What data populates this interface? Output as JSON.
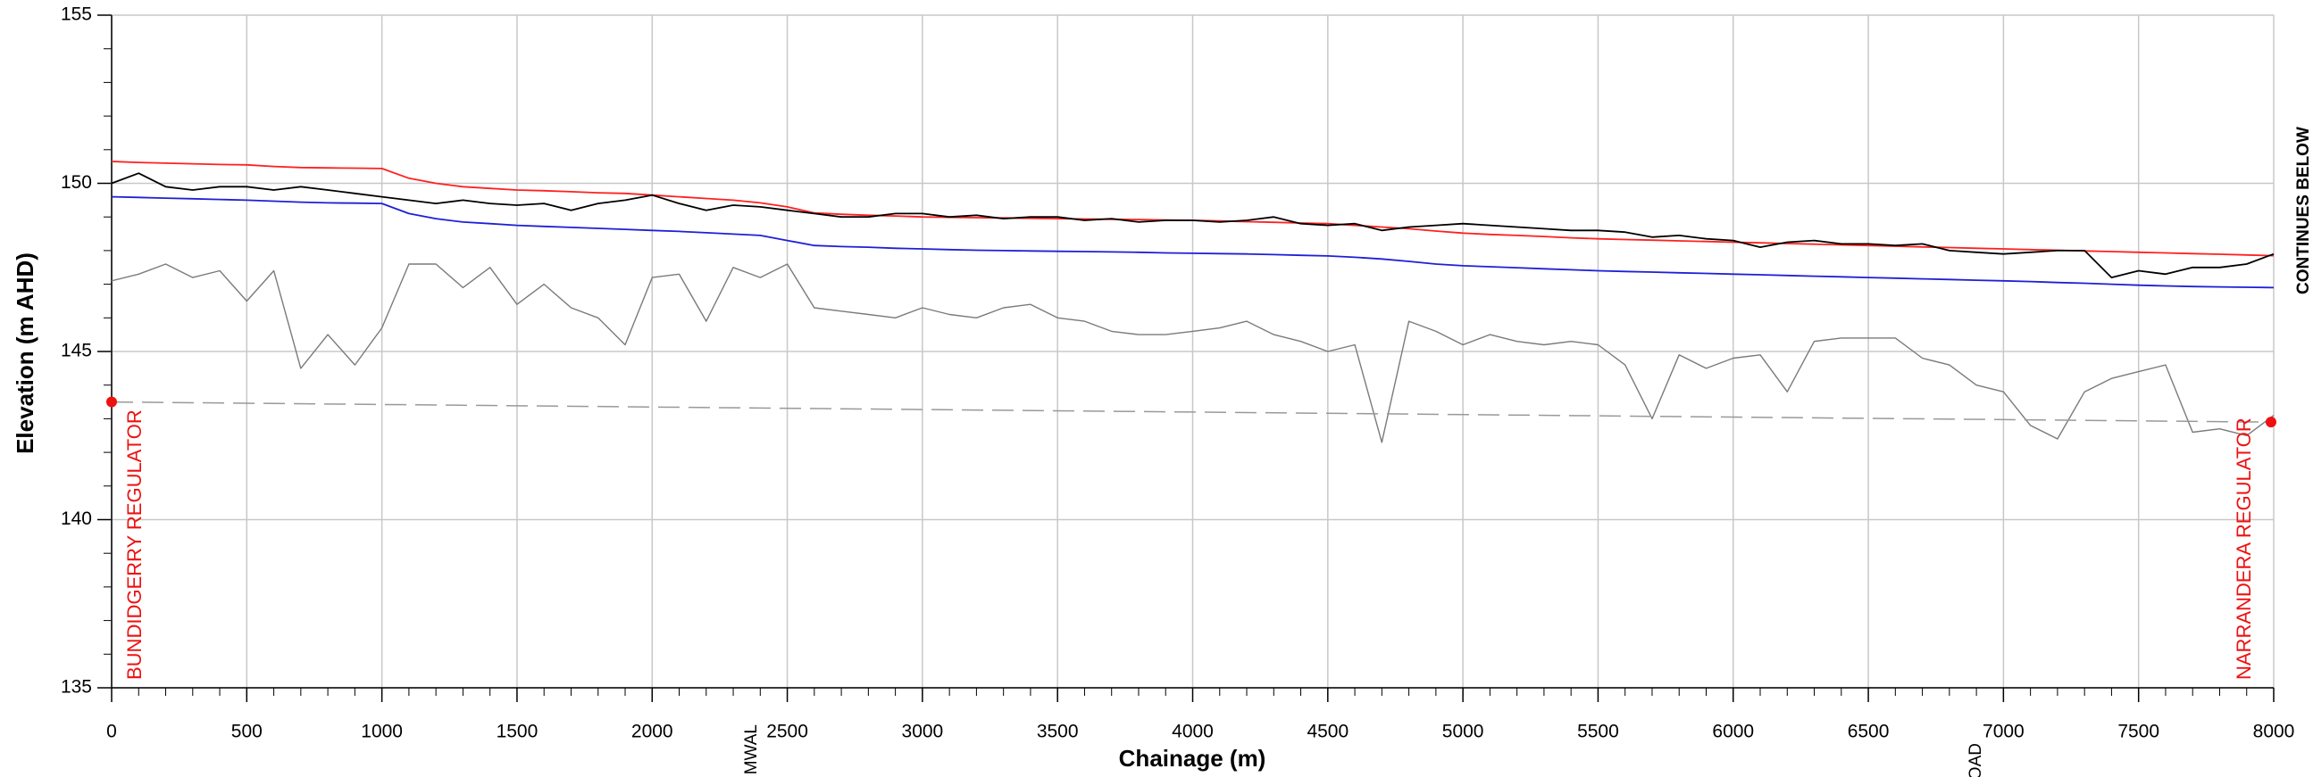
{
  "chart_data": {
    "type": "line",
    "xlabel": "Chainage (m)",
    "ylabel": "Elevation (m AHD)",
    "x": [
      0,
      100,
      200,
      300,
      400,
      500,
      600,
      700,
      800,
      900,
      1000,
      1100,
      1200,
      1300,
      1400,
      1500,
      1600,
      1700,
      1800,
      1900,
      2000,
      2100,
      2200,
      2300,
      2400,
      2500,
      2600,
      2700,
      2800,
      2900,
      3000,
      3100,
      3200,
      3300,
      3400,
      3500,
      3600,
      3700,
      3800,
      3900,
      4000,
      4100,
      4200,
      4300,
      4400,
      4500,
      4600,
      4700,
      4800,
      4900,
      5000,
      5100,
      5200,
      5300,
      5400,
      5500,
      5600,
      5700,
      5800,
      5900,
      6000,
      6100,
      6200,
      6300,
      6400,
      6500,
      6600,
      6700,
      6800,
      6900,
      7000,
      7100,
      7200,
      7300,
      7400,
      7500,
      7600,
      7700,
      7800,
      7900,
      8000
    ],
    "series": [
      {
        "color": "#ff2020",
        "values": [
          150.65,
          150.62,
          150.6,
          150.58,
          150.56,
          150.55,
          150.5,
          150.47,
          150.46,
          150.45,
          150.44,
          150.15,
          150.0,
          149.9,
          149.85,
          149.8,
          149.78,
          149.75,
          149.72,
          149.7,
          149.65,
          149.6,
          149.55,
          149.5,
          149.42,
          149.3,
          149.12,
          149.08,
          149.05,
          149.03,
          149.0,
          148.99,
          148.98,
          148.97,
          148.96,
          148.95,
          148.94,
          148.93,
          148.92,
          148.91,
          148.9,
          148.88,
          148.86,
          148.84,
          148.82,
          148.8,
          148.75,
          148.7,
          148.65,
          148.58,
          148.52,
          148.48,
          148.45,
          148.42,
          148.38,
          148.35,
          148.33,
          148.31,
          148.29,
          148.27,
          148.25,
          148.23,
          148.21,
          148.19,
          148.17,
          148.15,
          148.13,
          148.11,
          148.09,
          148.07,
          148.05,
          148.03,
          148.01,
          147.99,
          147.97,
          147.95,
          147.93,
          147.91,
          147.89,
          147.87,
          147.85
        ]
      },
      {
        "color": "#000000",
        "values": [
          150.0,
          150.3,
          149.9,
          149.8,
          149.9,
          149.9,
          149.8,
          149.9,
          149.8,
          149.7,
          149.6,
          149.5,
          149.4,
          149.5,
          149.4,
          149.35,
          149.4,
          149.2,
          149.4,
          149.5,
          149.65,
          149.4,
          149.2,
          149.35,
          149.3,
          149.2,
          149.1,
          149.0,
          149.0,
          149.1,
          149.1,
          149.0,
          149.05,
          148.95,
          149.0,
          149.0,
          148.9,
          148.95,
          148.85,
          148.9,
          148.9,
          148.85,
          148.9,
          149.0,
          148.8,
          148.75,
          148.8,
          148.6,
          148.7,
          148.75,
          148.8,
          148.75,
          148.7,
          148.65,
          148.6,
          148.6,
          148.55,
          148.4,
          148.45,
          148.35,
          148.3,
          148.1,
          148.25,
          148.3,
          148.2,
          148.2,
          148.15,
          148.2,
          148.0,
          147.95,
          147.9,
          147.95,
          148.0,
          148.0,
          147.2,
          147.4,
          147.3,
          147.5,
          147.5,
          147.6,
          147.9
        ]
      },
      {
        "color": "#1f1fd8",
        "values": [
          149.6,
          149.58,
          149.56,
          149.54,
          149.52,
          149.5,
          149.47,
          149.44,
          149.42,
          149.41,
          149.4,
          149.1,
          148.95,
          148.85,
          148.8,
          148.75,
          148.72,
          148.69,
          148.66,
          148.63,
          148.6,
          148.57,
          148.53,
          148.49,
          148.45,
          148.3,
          148.15,
          148.12,
          148.1,
          148.07,
          148.05,
          148.03,
          148.01,
          148.0,
          147.99,
          147.98,
          147.97,
          147.96,
          147.95,
          147.93,
          147.92,
          147.91,
          147.9,
          147.88,
          147.86,
          147.84,
          147.8,
          147.75,
          147.68,
          147.6,
          147.55,
          147.52,
          147.49,
          147.46,
          147.43,
          147.4,
          147.38,
          147.36,
          147.34,
          147.32,
          147.3,
          147.28,
          147.26,
          147.24,
          147.22,
          147.2,
          147.18,
          147.16,
          147.14,
          147.12,
          147.1,
          147.08,
          147.05,
          147.03,
          147.0,
          146.97,
          146.95,
          146.93,
          146.92,
          146.91,
          146.9
        ]
      },
      {
        "color": "#7a7a7a",
        "values": [
          147.1,
          147.3,
          147.6,
          147.2,
          147.4,
          146.5,
          147.4,
          144.5,
          145.5,
          144.6,
          145.7,
          147.6,
          147.6,
          146.9,
          147.5,
          146.4,
          147.0,
          146.3,
          146.0,
          145.2,
          147.2,
          147.3,
          145.9,
          147.5,
          147.2,
          147.6,
          146.3,
          146.2,
          146.1,
          146.0,
          146.3,
          146.1,
          146.0,
          146.3,
          146.4,
          146.0,
          145.9,
          145.6,
          145.5,
          145.5,
          145.6,
          145.7,
          145.9,
          145.5,
          145.3,
          145.0,
          145.2,
          142.3,
          145.9,
          145.6,
          145.2,
          145.5,
          145.3,
          145.2,
          145.3,
          145.2,
          144.6,
          143.0,
          144.9,
          144.5,
          144.8,
          144.9,
          143.8,
          145.3,
          145.4,
          145.4,
          145.4,
          144.8,
          144.6,
          144.0,
          143.8,
          142.8,
          142.4,
          143.8,
          144.2,
          144.4,
          144.6,
          142.6,
          142.7,
          142.5,
          143.1
        ]
      },
      {
        "color": "#999999",
        "dashed": true,
        "x": [
          0,
          8000
        ],
        "values": [
          143.5,
          142.9
        ]
      }
    ],
    "points": {
      "color": "#ee1111",
      "x": [
        0,
        7990
      ],
      "values": [
        143.5,
        142.9
      ]
    },
    "annotations": [
      "BUNDIDGERRY REGULATOR",
      "NARRANDERA REGULATOR",
      "CONTINUES BELOW",
      "MWAL",
      "OAD"
    ],
    "xlim": [
      0,
      8000
    ],
    "xticks": [
      0,
      500,
      1000,
      1500,
      2000,
      2500,
      3000,
      3500,
      4000,
      4500,
      5000,
      5500,
      6000,
      6500,
      7000,
      7500,
      8000
    ],
    "xminorticks": [
      0,
      100,
      200,
      300,
      400,
      500,
      600,
      700,
      800,
      900,
      1000,
      1100,
      1200,
      1300,
      1400,
      1500,
      1600,
      1700,
      1800,
      1900,
      2000,
      2100,
      2200,
      2300,
      2400,
      2500,
      2600,
      2700,
      2800,
      2900,
      3000,
      3100,
      3200,
      3300,
      3400,
      3500,
      3600,
      3700,
      3800,
      3900,
      4000,
      4100,
      4200,
      4300,
      4400,
      4500,
      4600,
      4700,
      4800,
      4900,
      5000,
      5100,
      5200,
      5300,
      5400,
      5500,
      5600,
      5700,
      5800,
      5900,
      6000,
      6100,
      6200,
      6300,
      6400,
      6500,
      6600,
      6700,
      6800,
      6900,
      7000,
      7100,
      7200,
      7300,
      7400,
      7500,
      7600,
      7700,
      7800,
      7900,
      8000
    ],
    "ylim": [
      135,
      155
    ],
    "yticks": [
      135,
      140,
      145,
      150,
      155
    ],
    "yminorticks": [
      135,
      136,
      137,
      138,
      139,
      140,
      141,
      142,
      143,
      144,
      145,
      146,
      147,
      148,
      149,
      150,
      151,
      152,
      153,
      154,
      155
    ],
    "grid": true
  }
}
